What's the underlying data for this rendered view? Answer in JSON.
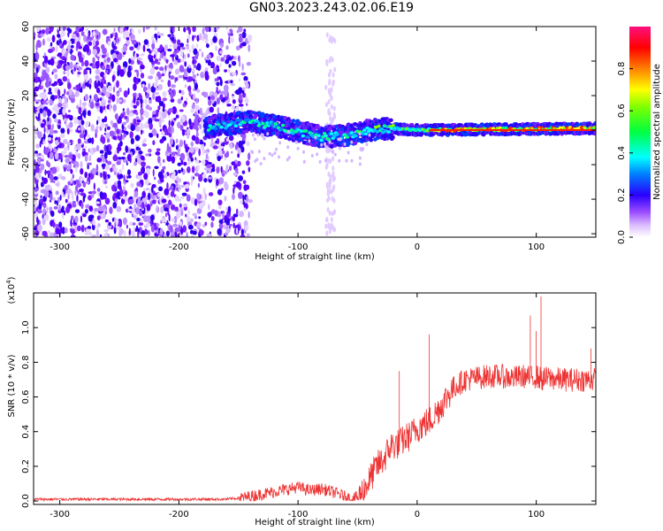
{
  "title": "GN03.2023.243.02.06.E19",
  "chart_data": [
    {
      "type": "heatmap",
      "xlabel": "Height of straight line (km)",
      "ylabel": "Frequency (Hz)",
      "xlim": [
        -322,
        150
      ],
      "ylim": [
        -62,
        60
      ],
      "xticks": [
        -300,
        -200,
        -100,
        0,
        100
      ],
      "yticks": [
        -60,
        -40,
        -20,
        0,
        20,
        40,
        60
      ],
      "colorbar": {
        "label": "Normalized spectral amplitude",
        "range": [
          0.0,
          1.0
        ],
        "ticks": [
          "0.0",
          "0.2",
          "0.4",
          "0.6",
          "0.8"
        ],
        "colors": [
          "#ffffff",
          "#c9a3ff",
          "#8a2be2",
          "#2a00ff",
          "#00ffff",
          "#00ff00",
          "#ffff00",
          "#ff8000",
          "#ff0000",
          "#ff0080"
        ]
      },
      "ridge": {
        "description_points_x": [
          -175,
          -140,
          -110,
          -80,
          -60,
          -40,
          -20,
          0,
          150
        ],
        "frequency_y": [
          2,
          5,
          1,
          -4,
          -3,
          0,
          1,
          0,
          1
        ]
      }
    },
    {
      "type": "line",
      "xlabel": "Height of straight line (km)",
      "ylabel": "SNR (10 * v/v)",
      "exponent_label": "(x10",
      "exponent_sup": "4",
      "xlim": [
        -322,
        150
      ],
      "ylim": [
        -0.02,
        1.2
      ],
      "xticks": [
        -300,
        -200,
        -100,
        0,
        100
      ],
      "yticks": [
        0.0,
        0.2,
        0.4,
        0.6,
        0.8,
        1.0
      ],
      "color": "#ee3333",
      "series": [
        {
          "x": [
            -322,
            -300,
            -250,
            -200,
            -160,
            -145,
            -130,
            -115,
            -100,
            -90,
            -80,
            -70,
            -62,
            -55,
            -48,
            -40,
            -34,
            -28,
            -22,
            -15,
            -10,
            -5,
            0,
            5,
            10,
            15,
            20,
            30,
            40,
            50,
            60,
            70,
            80,
            90,
            95,
            100,
            105,
            110,
            120,
            130,
            140,
            150
          ],
          "values": [
            0.01,
            0.01,
            0.01,
            0.01,
            0.01,
            0.02,
            0.04,
            0.06,
            0.08,
            0.06,
            0.07,
            0.05,
            0.03,
            0.01,
            0.03,
            0.12,
            0.2,
            0.24,
            0.32,
            0.33,
            0.36,
            0.38,
            0.42,
            0.44,
            0.46,
            0.5,
            0.55,
            0.65,
            0.7,
            0.71,
            0.72,
            0.72,
            0.71,
            0.72,
            0.71,
            0.72,
            0.7,
            0.71,
            0.7,
            0.7,
            0.7,
            0.7
          ]
        }
      ],
      "spikes": [
        {
          "x": -15,
          "y": 0.75
        },
        {
          "x": 10,
          "y": 0.96
        },
        {
          "x": 95,
          "y": 1.07
        },
        {
          "x": 100,
          "y": 0.98
        },
        {
          "x": 104,
          "y": 1.18
        },
        {
          "x": 146,
          "y": 0.88
        }
      ]
    }
  ]
}
